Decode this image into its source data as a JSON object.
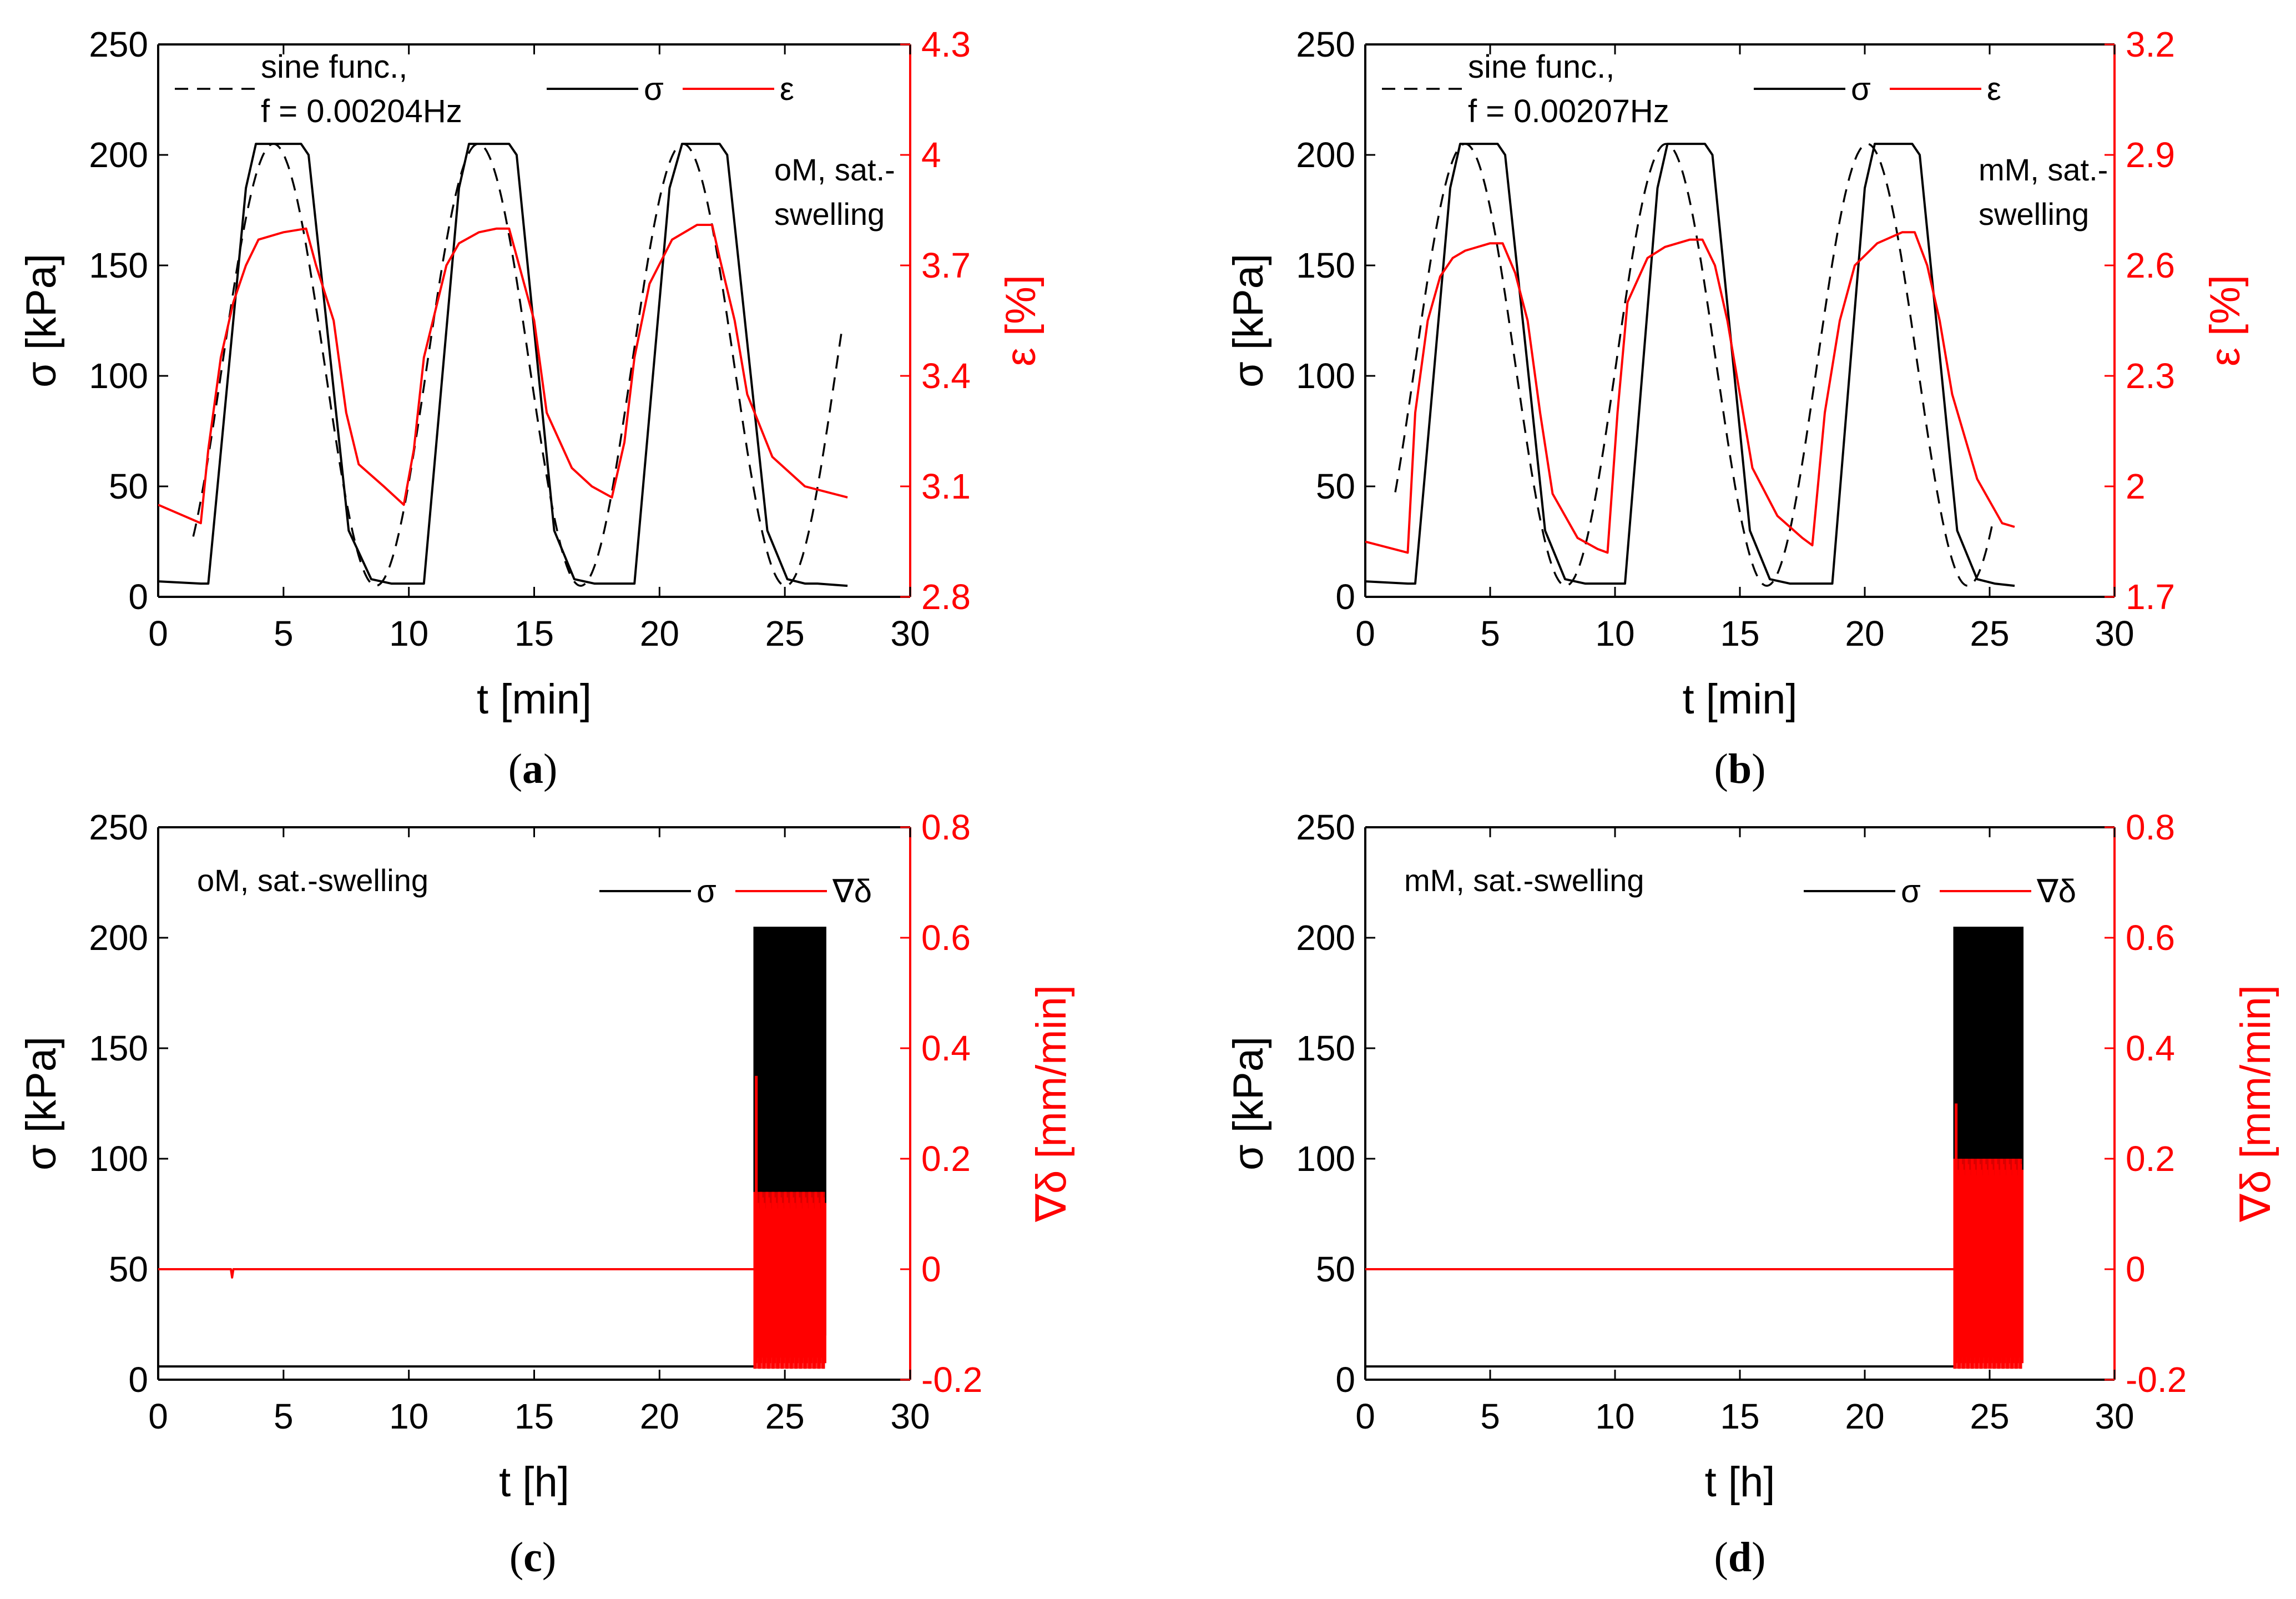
{
  "colors": {
    "stress": "#000000",
    "strain": "#ff0000",
    "axis": "#000000"
  },
  "chart_data": [
    {
      "id": "a",
      "type": "line",
      "caption_letter": "a",
      "xlabel": "t [min]",
      "ylabel": "σ [kPa]",
      "y2label": "ε [%]",
      "xlim": [
        0,
        30
      ],
      "ylim": [
        0,
        250
      ],
      "y2lim": [
        2.8,
        4.3
      ],
      "xticks": [
        "0",
        "5",
        "10",
        "15",
        "20",
        "25",
        "30"
      ],
      "yticks": [
        "0",
        "50",
        "100",
        "150",
        "200",
        "250"
      ],
      "y2ticks": [
        "2.8",
        "3.1",
        "3.4",
        "3.7",
        "4",
        "4.3"
      ],
      "legend": {
        "sine_line1": "sine func.,",
        "sine_line2": "f = 0.00204Hz",
        "stress": "σ",
        "strain": "ε"
      },
      "annotation": [
        "oM, sat.-",
        "swelling"
      ],
      "sine": {
        "period": 8.17,
        "t0": 1.4,
        "t1": 27.3,
        "phase_shift": 3.2
      },
      "series": [
        {
          "name": "σ",
          "axis": "left",
          "color": "#000000",
          "x": [
            0,
            1.7,
            2.0,
            3.5,
            3.9,
            5.7,
            6.0,
            7.6,
            8.5,
            9.3,
            9.5,
            10.1,
            10.6,
            12.0,
            12.4,
            14.0,
            14.3,
            15.8,
            16.6,
            17.4,
            17.8,
            18.4,
            19.0,
            20.4,
            20.9,
            22.4,
            22.7,
            24.3,
            25.1,
            25.8,
            26.3,
            27.5
          ],
          "values": [
            7,
            6,
            6,
            185,
            205,
            205,
            200,
            30,
            8,
            6,
            6,
            6,
            6,
            185,
            205,
            205,
            200,
            30,
            8,
            6,
            6,
            6,
            6,
            185,
            205,
            205,
            200,
            30,
            8,
            6,
            6,
            5
          ]
        },
        {
          "name": "ε",
          "axis": "right",
          "color": "#ff0000",
          "x": [
            0,
            1.7,
            2.0,
            2.5,
            3.0,
            3.5,
            4.0,
            5.0,
            5.9,
            6.3,
            7.0,
            7.5,
            8.0,
            9.0,
            9.8,
            10.2,
            10.6,
            11.5,
            12.0,
            12.8,
            13.5,
            14.0,
            14.4,
            15.0,
            15.5,
            16.5,
            17.3,
            18.1,
            18.6,
            19.0,
            19.6,
            20.5,
            21.5,
            22.1,
            22.4,
            23.0,
            23.5,
            24.5,
            25.8,
            27.5
          ],
          "values": [
            3.05,
            3.0,
            3.2,
            3.45,
            3.6,
            3.7,
            3.77,
            3.79,
            3.8,
            3.7,
            3.55,
            3.3,
            3.16,
            3.1,
            3.05,
            3.2,
            3.45,
            3.7,
            3.76,
            3.79,
            3.8,
            3.8,
            3.7,
            3.55,
            3.3,
            3.15,
            3.1,
            3.07,
            3.22,
            3.45,
            3.65,
            3.77,
            3.81,
            3.81,
            3.72,
            3.55,
            3.35,
            3.18,
            3.1,
            3.07
          ]
        }
      ]
    },
    {
      "id": "b",
      "type": "line",
      "caption_letter": "b",
      "xlabel": "t [min]",
      "ylabel": "σ [kPa]",
      "y2label": "ε [%]",
      "xlim": [
        0,
        30
      ],
      "ylim": [
        0,
        250
      ],
      "y2lim": [
        1.7,
        3.2
      ],
      "xticks": [
        "0",
        "5",
        "10",
        "15",
        "20",
        "25",
        "30"
      ],
      "yticks": [
        "0",
        "50",
        "100",
        "150",
        "200",
        "250"
      ],
      "y2ticks": [
        "1.7",
        "2",
        "2.3",
        "2.6",
        "2.9",
        "3.2"
      ],
      "legend": {
        "sine_line1": "sine func.,",
        "sine_line2": "f = 0.00207Hz",
        "stress": "σ",
        "strain": "ε"
      },
      "annotation": [
        "mM, sat.-",
        "swelling"
      ],
      "sine": {
        "period": 8.05,
        "t0": 1.2,
        "t1": 25.2,
        "phase_shift": 2.8
      },
      "series": [
        {
          "name": "σ",
          "axis": "left",
          "color": "#000000",
          "x": [
            0,
            1.7,
            2.0,
            3.4,
            3.8,
            5.3,
            5.6,
            7.2,
            8.0,
            8.8,
            9.2,
            10.0,
            10.4,
            11.7,
            12.1,
            13.6,
            13.9,
            15.4,
            16.2,
            17.0,
            17.4,
            18.4,
            18.7,
            20.0,
            20.4,
            21.9,
            22.2,
            23.7,
            24.5,
            25.2,
            26.0
          ],
          "values": [
            7,
            6,
            6,
            185,
            205,
            205,
            200,
            30,
            8,
            6,
            6,
            6,
            6,
            185,
            205,
            205,
            200,
            30,
            8,
            6,
            6,
            6,
            6,
            185,
            205,
            205,
            200,
            30,
            8,
            6,
            5
          ]
        },
        {
          "name": "ε",
          "axis": "right",
          "color": "#ff0000",
          "x": [
            0,
            1.7,
            2.0,
            2.5,
            3.0,
            3.5,
            4.0,
            5.0,
            5.5,
            6.0,
            6.5,
            7.0,
            7.5,
            8.5,
            9.3,
            9.7,
            10.1,
            10.5,
            11.3,
            12.0,
            13.0,
            13.5,
            14.0,
            14.5,
            15.0,
            15.5,
            16.5,
            17.5,
            17.9,
            18.4,
            19.0,
            19.6,
            20.5,
            21.5,
            22.0,
            22.5,
            23.0,
            23.5,
            24.5,
            25.5,
            26.0
          ],
          "values": [
            1.85,
            1.82,
            2.2,
            2.45,
            2.57,
            2.62,
            2.64,
            2.66,
            2.66,
            2.58,
            2.45,
            2.2,
            1.98,
            1.86,
            1.83,
            1.82,
            2.2,
            2.5,
            2.62,
            2.65,
            2.67,
            2.67,
            2.6,
            2.45,
            2.25,
            2.05,
            1.92,
            1.86,
            1.84,
            2.2,
            2.45,
            2.6,
            2.66,
            2.69,
            2.69,
            2.6,
            2.45,
            2.25,
            2.02,
            1.9,
            1.89
          ]
        }
      ]
    },
    {
      "id": "c",
      "type": "line",
      "caption_letter": "c",
      "xlabel": "t [h]",
      "ylabel": "σ [kPa]",
      "y2label": "∇δ [mm/min]",
      "xlim": [
        0,
        30
      ],
      "ylim": [
        0,
        250
      ],
      "y2lim": [
        -0.2,
        0.8
      ],
      "xticks": [
        "0",
        "5",
        "10",
        "15",
        "20",
        "25",
        "30"
      ],
      "yticks": [
        "0",
        "50",
        "100",
        "150",
        "200",
        "250"
      ],
      "y2ticks": [
        "-0.2",
        "0",
        "0.2",
        "0.4",
        "0.6",
        "0.8"
      ],
      "legend": {
        "stress": "σ",
        "strain": "∇δ"
      },
      "annotation": [
        "oM, sat.-swelling"
      ],
      "burst": {
        "t_start": 23.8,
        "t_end": 26.6,
        "sigma_hi": 205,
        "sigma_lo": 5,
        "sigma_env_lo": 20,
        "grad_spike": 0.35,
        "grad_hi": 0.14,
        "grad_lo": -0.18
      },
      "series": [
        {
          "name": "σ",
          "axis": "left",
          "color": "#000000",
          "x": [
            0,
            23.8
          ],
          "values": [
            6,
            6
          ]
        },
        {
          "name": "∇δ",
          "axis": "right",
          "color": "#ff0000",
          "x": [
            0,
            2.9,
            2.95,
            3.0,
            23.8
          ],
          "values": [
            0.0,
            0.0,
            -0.015,
            0.0,
            0.0
          ]
        }
      ]
    },
    {
      "id": "d",
      "type": "line",
      "caption_letter": "d",
      "xlabel": "t [h]",
      "ylabel": "σ [kPa]",
      "y2label": "∇δ [mm/min]",
      "xlim": [
        0,
        30
      ],
      "ylim": [
        0,
        250
      ],
      "y2lim": [
        -0.2,
        0.8
      ],
      "xticks": [
        "0",
        "5",
        "10",
        "15",
        "20",
        "25",
        "30"
      ],
      "yticks": [
        "0",
        "50",
        "100",
        "150",
        "200",
        "250"
      ],
      "y2ticks": [
        "-0.2",
        "0",
        "0.2",
        "0.4",
        "0.6",
        "0.8"
      ],
      "legend": {
        "stress": "σ",
        "strain": "∇δ"
      },
      "annotation": [
        "mM, sat.-swelling"
      ],
      "burst": {
        "t_start": 23.6,
        "t_end": 26.3,
        "sigma_hi": 205,
        "sigma_lo": 5,
        "sigma_env_lo": 14,
        "grad_spike": 0.3,
        "grad_hi": 0.2,
        "grad_lo": -0.18
      },
      "series": [
        {
          "name": "σ",
          "axis": "left",
          "color": "#000000",
          "x": [
            0,
            23.6
          ],
          "values": [
            6,
            6
          ]
        },
        {
          "name": "∇δ",
          "axis": "right",
          "color": "#ff0000",
          "x": [
            0,
            23.6
          ],
          "values": [
            0.0,
            0.0
          ]
        }
      ]
    }
  ]
}
